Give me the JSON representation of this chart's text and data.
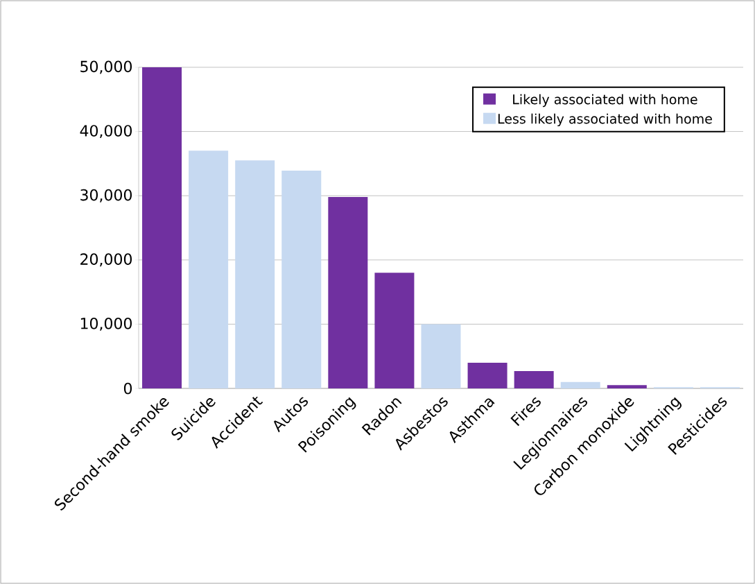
{
  "chart_data": {
    "type": "bar",
    "categories": [
      "Second-hand smoke",
      "Suicide",
      "Accident",
      "Autos",
      "Poisoning",
      "Radon",
      "Asbestos",
      "Asthma",
      "Fires",
      "Legionnaires",
      "Carbon monoxide",
      "Lightning",
      "Pesticides"
    ],
    "series": [
      {
        "name": "Likely associated with home",
        "color": "#7030a0",
        "values": [
          50000,
          null,
          null,
          null,
          29800,
          18000,
          null,
          4000,
          2700,
          null,
          500,
          null,
          null
        ]
      },
      {
        "name": "Less likely associated with home",
        "color": "#c6d9f1",
        "values": [
          null,
          37000,
          35500,
          33900,
          null,
          null,
          10000,
          null,
          null,
          1000,
          null,
          200,
          200
        ]
      }
    ],
    "ylim": [
      0,
      50000
    ],
    "yticks": [
      {
        "value": 0,
        "label": "0"
      },
      {
        "value": 10000,
        "label": "10,000"
      },
      {
        "value": 20000,
        "label": "20,000"
      },
      {
        "value": 30000,
        "label": "30,000"
      },
      {
        "value": 40000,
        "label": "40,000"
      },
      {
        "value": 50000,
        "label": "50,000"
      }
    ],
    "grid": "y",
    "legend": "top right"
  }
}
